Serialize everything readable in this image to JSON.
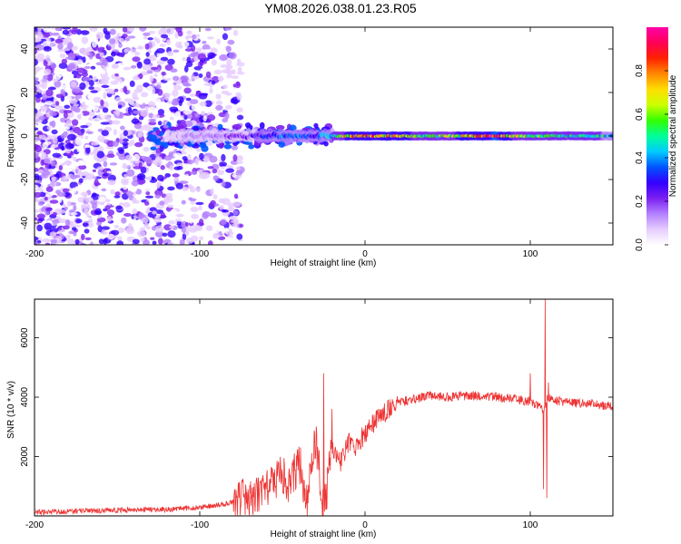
{
  "title": "YM08.2026.038.01.23.R05",
  "chart_data": [
    {
      "type": "heatmap",
      "title": "",
      "xlabel": "Height of straight line (km)",
      "ylabel": "Frequency (Hz)",
      "xlim": [
        -200,
        150
      ],
      "ylim": [
        -50,
        50
      ],
      "xticks": [
        -200,
        -100,
        0,
        100
      ],
      "yticks": [
        -40,
        -20,
        0,
        20,
        40
      ],
      "colorbar": {
        "label": "Normalized spectral amplitude",
        "range": [
          0,
          1
        ],
        "ticks": [
          0.0,
          0.2,
          0.4,
          0.6,
          0.8
        ],
        "tick_labels": [
          "0.0",
          "0.2",
          "0.4",
          "0.6",
          "0.8"
        ],
        "colormap": "rainbow",
        "colors": [
          "#ffffff",
          "#e6ccff",
          "#b380ff",
          "#7a1ff0",
          "#3300ff",
          "#0055ff",
          "#00ccff",
          "#00ff99",
          "#33ff00",
          "#ccff00",
          "#ffdd00",
          "#ff8800",
          "#ff2200",
          "#ff0055",
          "#ff00aa"
        ]
      },
      "description_regions": [
        {
          "x_range": [
            -200,
            -75
          ],
          "freq_range": [
            -50,
            50
          ],
          "amplitude": "low, scattered noise"
        },
        {
          "x_range": [
            -130,
            -25
          ],
          "freq_range": [
            -8,
            8
          ],
          "amplitude": "0.1-0.4 blobs near 0 Hz"
        },
        {
          "x_range": [
            -20,
            150
          ],
          "freq_range": [
            -3,
            3
          ],
          "amplitude": "0.3-1.0 band centered at 0 Hz"
        }
      ],
      "ridge": {
        "x": [
          -120,
          -100,
          -80,
          -60,
          -40,
          -30,
          -20,
          -10,
          0,
          20,
          40,
          60,
          80,
          90,
          100,
          120,
          150
        ],
        "amp": [
          0.1,
          0.15,
          0.2,
          0.35,
          0.4,
          0.35,
          0.5,
          0.75,
          0.9,
          0.8,
          0.6,
          0.75,
          0.95,
          0.7,
          0.6,
          0.55,
          0.5
        ]
      }
    },
    {
      "type": "line",
      "title": "",
      "xlabel": "Height of straight line (km)",
      "ylabel": "SNR (10 * v/v)",
      "xlim": [
        -200,
        150
      ],
      "ylim": [
        0,
        7300
      ],
      "xticks": [
        -200,
        -100,
        0,
        100
      ],
      "yticks": [
        2000,
        4000,
        6000
      ],
      "color": "#ee3333",
      "series": [
        {
          "name": "SNR",
          "x": [
            -200,
            -180,
            -160,
            -140,
            -120,
            -100,
            -90,
            -80,
            -70,
            -60,
            -55,
            -50,
            -45,
            -40,
            -35,
            -30,
            -25,
            -20,
            -15,
            -10,
            -5,
            0,
            5,
            10,
            20,
            30,
            40,
            50,
            60,
            70,
            80,
            90,
            100,
            105,
            108,
            110,
            112,
            115,
            120,
            130,
            140,
            150
          ],
          "y": [
            120,
            150,
            180,
            200,
            220,
            280,
            350,
            450,
            600,
            800,
            1100,
            1400,
            1000,
            1900,
            500,
            2600,
            200,
            2200,
            1800,
            2500,
            2300,
            2800,
            3100,
            3400,
            3800,
            3950,
            4050,
            4000,
            4050,
            4050,
            4000,
            3950,
            3850,
            3700,
            3500,
            3900,
            3950,
            3900,
            3850,
            3800,
            3750,
            3700
          ]
        }
      ],
      "spikes": [
        {
          "x": -25,
          "y": 4800
        },
        {
          "x": -23,
          "y": 300
        },
        {
          "x": -20,
          "y": 3600
        },
        {
          "x": 100,
          "y": 4800
        },
        {
          "x": 108,
          "y": 900
        },
        {
          "x": 109,
          "y": 7300
        },
        {
          "x": 110,
          "y": 600
        },
        {
          "x": 111,
          "y": 4500
        }
      ]
    }
  ]
}
